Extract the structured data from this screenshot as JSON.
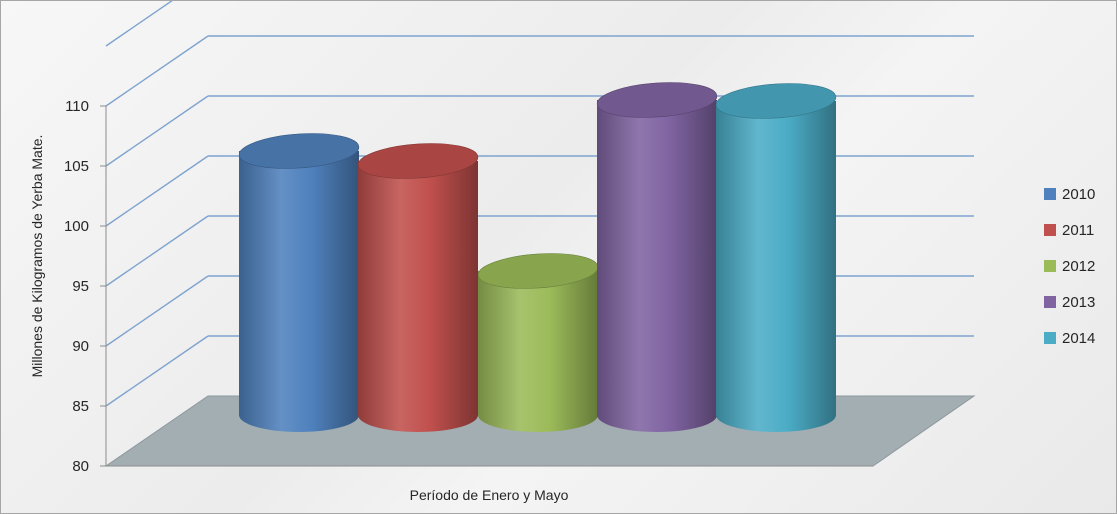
{
  "chart_data": {
    "type": "bar",
    "title": "",
    "categories": [
      "Período de Enero y Mayo"
    ],
    "xlabel": "Período de Enero y Mayo",
    "ylabel": "Millones de Kilogramos de Yerba Mate.",
    "ylim": [
      80,
      110
    ],
    "yticks": [
      80,
      85,
      90,
      95,
      100,
      105,
      110
    ],
    "grid": true,
    "legend_position": "right",
    "style": "3d-cylinder",
    "series": [
      {
        "name": "2010",
        "values": [
          104.8
        ],
        "color": "#4f81bd"
      },
      {
        "name": "2011",
        "values": [
          103.8
        ],
        "color": "#c0504d"
      },
      {
        "name": "2012",
        "values": [
          92.8
        ],
        "color": "#9bbb59"
      },
      {
        "name": "2013",
        "values": [
          109.9
        ],
        "color": "#8064a2"
      },
      {
        "name": "2014",
        "values": [
          109.8
        ],
        "color": "#4bacc6"
      }
    ]
  }
}
